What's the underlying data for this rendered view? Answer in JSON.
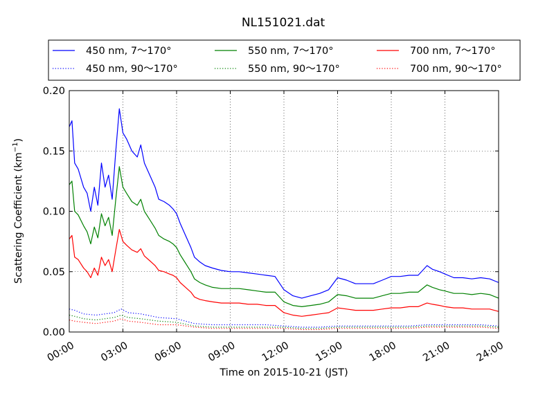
{
  "chart_data": {
    "type": "line",
    "title": "NL151021.dat",
    "xlabel": "Time on 2015-10-21 (JST)",
    "ylabel_main": "Scattering Coefficient (km",
    "ylabel_sup": "−1",
    "ylabel_end": ")",
    "xlim": [
      0,
      24
    ],
    "ylim": [
      0,
      0.2
    ],
    "x_ticks": [
      0,
      3,
      6,
      9,
      12,
      15,
      18,
      21,
      24
    ],
    "x_tick_labels": [
      "00:00",
      "03:00",
      "06:00",
      "09:00",
      "12:00",
      "15:00",
      "18:00",
      "21:00",
      "24:00"
    ],
    "y_ticks": [
      0,
      0.05,
      0.1,
      0.15,
      0.2
    ],
    "y_tick_labels": [
      "0.00",
      "0.05",
      "0.10",
      "0.15",
      "0.20"
    ],
    "grid": true,
    "legend_position": "top",
    "series": [
      {
        "name": "450 nm, 7～170°",
        "color": "#0000ff",
        "style": "solid",
        "x": [
          0,
          0.15,
          0.3,
          0.5,
          0.8,
          1.0,
          1.2,
          1.4,
          1.6,
          1.8,
          2.0,
          2.2,
          2.4,
          2.6,
          2.8,
          3.0,
          3.2,
          3.5,
          3.8,
          4.0,
          4.2,
          4.5,
          4.8,
          5.0,
          5.3,
          5.6,
          5.8,
          6.0,
          6.2,
          6.5,
          6.8,
          7.0,
          7.3,
          7.6,
          8.0,
          8.5,
          9.0,
          9.5,
          10.0,
          10.5,
          11.0,
          11.5,
          12.0,
          12.5,
          13.0,
          13.5,
          14.0,
          14.5,
          15.0,
          15.5,
          16.0,
          16.5,
          17.0,
          17.5,
          18.0,
          18.5,
          19.0,
          19.5,
          20.0,
          20.3,
          20.7,
          21.0,
          21.5,
          22.0,
          22.5,
          23.0,
          23.5,
          24.0
        ],
        "y": [
          0.17,
          0.175,
          0.14,
          0.135,
          0.12,
          0.115,
          0.1,
          0.12,
          0.105,
          0.14,
          0.12,
          0.13,
          0.11,
          0.15,
          0.185,
          0.165,
          0.16,
          0.15,
          0.145,
          0.155,
          0.14,
          0.13,
          0.12,
          0.11,
          0.108,
          0.105,
          0.102,
          0.098,
          0.09,
          0.08,
          0.07,
          0.062,
          0.058,
          0.055,
          0.053,
          0.051,
          0.05,
          0.05,
          0.049,
          0.048,
          0.047,
          0.046,
          0.035,
          0.03,
          0.028,
          0.03,
          0.032,
          0.035,
          0.045,
          0.043,
          0.04,
          0.04,
          0.04,
          0.043,
          0.046,
          0.046,
          0.047,
          0.047,
          0.055,
          0.052,
          0.05,
          0.048,
          0.045,
          0.045,
          0.044,
          0.045,
          0.044,
          0.041
        ]
      },
      {
        "name": "550 nm, 7～170°",
        "color": "#008000",
        "style": "solid",
        "x": [
          0,
          0.15,
          0.3,
          0.5,
          0.8,
          1.0,
          1.2,
          1.4,
          1.6,
          1.8,
          2.0,
          2.2,
          2.4,
          2.6,
          2.8,
          3.0,
          3.2,
          3.5,
          3.8,
          4.0,
          4.2,
          4.5,
          4.8,
          5.0,
          5.3,
          5.6,
          5.8,
          6.0,
          6.2,
          6.5,
          6.8,
          7.0,
          7.3,
          7.6,
          8.0,
          8.5,
          9.0,
          9.5,
          10.0,
          10.5,
          11.0,
          11.5,
          12.0,
          12.5,
          13.0,
          13.5,
          14.0,
          14.5,
          15.0,
          15.5,
          16.0,
          16.5,
          17.0,
          17.5,
          18.0,
          18.5,
          19.0,
          19.5,
          20.0,
          20.3,
          20.7,
          21.0,
          21.5,
          22.0,
          22.5,
          23.0,
          23.5,
          24.0
        ],
        "y": [
          0.122,
          0.125,
          0.1,
          0.097,
          0.088,
          0.083,
          0.073,
          0.087,
          0.078,
          0.098,
          0.088,
          0.095,
          0.08,
          0.11,
          0.137,
          0.12,
          0.115,
          0.108,
          0.105,
          0.11,
          0.1,
          0.093,
          0.086,
          0.08,
          0.077,
          0.075,
          0.073,
          0.07,
          0.064,
          0.057,
          0.05,
          0.044,
          0.041,
          0.039,
          0.037,
          0.036,
          0.036,
          0.036,
          0.035,
          0.034,
          0.033,
          0.033,
          0.025,
          0.022,
          0.021,
          0.022,
          0.023,
          0.025,
          0.031,
          0.03,
          0.028,
          0.028,
          0.028,
          0.03,
          0.032,
          0.032,
          0.033,
          0.033,
          0.039,
          0.037,
          0.035,
          0.034,
          0.032,
          0.032,
          0.031,
          0.032,
          0.031,
          0.028
        ]
      },
      {
        "name": "700 nm, 7～170°",
        "color": "#ff0000",
        "style": "solid",
        "x": [
          0,
          0.15,
          0.3,
          0.5,
          0.8,
          1.0,
          1.2,
          1.4,
          1.6,
          1.8,
          2.0,
          2.2,
          2.4,
          2.6,
          2.8,
          3.0,
          3.2,
          3.5,
          3.8,
          4.0,
          4.2,
          4.5,
          4.8,
          5.0,
          5.3,
          5.6,
          5.8,
          6.0,
          6.2,
          6.5,
          6.8,
          7.0,
          7.3,
          7.6,
          8.0,
          8.5,
          9.0,
          9.5,
          10.0,
          10.5,
          11.0,
          11.5,
          12.0,
          12.5,
          13.0,
          13.5,
          14.0,
          14.5,
          15.0,
          15.5,
          16.0,
          16.5,
          17.0,
          17.5,
          18.0,
          18.5,
          19.0,
          19.5,
          20.0,
          20.3,
          20.7,
          21.0,
          21.5,
          22.0,
          22.5,
          23.0,
          23.5,
          24.0
        ],
        "y": [
          0.077,
          0.08,
          0.062,
          0.06,
          0.053,
          0.05,
          0.045,
          0.053,
          0.047,
          0.062,
          0.055,
          0.06,
          0.05,
          0.068,
          0.085,
          0.075,
          0.072,
          0.068,
          0.066,
          0.069,
          0.063,
          0.059,
          0.055,
          0.051,
          0.05,
          0.048,
          0.047,
          0.045,
          0.041,
          0.037,
          0.033,
          0.029,
          0.027,
          0.026,
          0.025,
          0.024,
          0.024,
          0.024,
          0.023,
          0.023,
          0.022,
          0.022,
          0.016,
          0.014,
          0.013,
          0.014,
          0.015,
          0.016,
          0.02,
          0.019,
          0.018,
          0.018,
          0.018,
          0.019,
          0.02,
          0.02,
          0.021,
          0.021,
          0.024,
          0.023,
          0.022,
          0.021,
          0.02,
          0.02,
          0.019,
          0.019,
          0.019,
          0.017
        ]
      },
      {
        "name": "450 nm, 90～170°",
        "color": "#0000ff",
        "style": "dotted",
        "x": [
          0,
          0.3,
          0.8,
          1.5,
          2.0,
          2.5,
          2.9,
          3.3,
          4.0,
          5.0,
          6.0,
          7.0,
          8.0,
          9.0,
          10.0,
          11.0,
          12.0,
          13.0,
          14.0,
          15.0,
          16.0,
          17.0,
          18.0,
          19.0,
          20.0,
          21.0,
          22.0,
          23.0,
          24.0
        ],
        "y": [
          0.019,
          0.018,
          0.015,
          0.014,
          0.015,
          0.016,
          0.019,
          0.016,
          0.015,
          0.012,
          0.011,
          0.007,
          0.006,
          0.006,
          0.006,
          0.006,
          0.005,
          0.004,
          0.004,
          0.005,
          0.005,
          0.005,
          0.005,
          0.005,
          0.006,
          0.006,
          0.006,
          0.006,
          0.005
        ]
      },
      {
        "name": "550 nm, 90～170°",
        "color": "#008000",
        "style": "dotted",
        "x": [
          0,
          0.3,
          0.8,
          1.5,
          2.0,
          2.5,
          2.9,
          3.3,
          4.0,
          5.0,
          6.0,
          7.0,
          8.0,
          9.0,
          10.0,
          11.0,
          12.0,
          13.0,
          14.0,
          15.0,
          16.0,
          17.0,
          18.0,
          19.0,
          20.0,
          21.0,
          22.0,
          23.0,
          24.0
        ],
        "y": [
          0.014,
          0.013,
          0.011,
          0.01,
          0.011,
          0.012,
          0.014,
          0.012,
          0.011,
          0.009,
          0.008,
          0.005,
          0.004,
          0.004,
          0.004,
          0.004,
          0.004,
          0.003,
          0.003,
          0.004,
          0.004,
          0.004,
          0.004,
          0.004,
          0.005,
          0.005,
          0.005,
          0.005,
          0.004
        ]
      },
      {
        "name": "700 nm, 90～170°",
        "color": "#ff0000",
        "style": "dotted",
        "x": [
          0,
          0.3,
          0.8,
          1.5,
          2.0,
          2.5,
          2.9,
          3.3,
          4.0,
          5.0,
          6.0,
          7.0,
          8.0,
          9.0,
          10.0,
          11.0,
          12.0,
          13.0,
          14.0,
          15.0,
          16.0,
          17.0,
          18.0,
          19.0,
          20.0,
          21.0,
          22.0,
          23.0,
          24.0
        ],
        "y": [
          0.01,
          0.009,
          0.008,
          0.007,
          0.008,
          0.009,
          0.011,
          0.009,
          0.008,
          0.006,
          0.006,
          0.004,
          0.003,
          0.003,
          0.003,
          0.003,
          0.003,
          0.002,
          0.002,
          0.003,
          0.003,
          0.003,
          0.003,
          0.003,
          0.004,
          0.004,
          0.004,
          0.004,
          0.003
        ]
      }
    ],
    "legend_order": [
      0,
      1,
      2,
      3,
      4,
      5
    ]
  }
}
